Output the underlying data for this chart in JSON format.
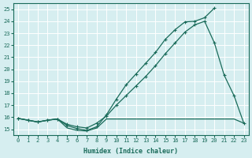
{
  "xlabel": "Humidex (Indice chaleur)",
  "ylabel": "",
  "bg_color": "#d6eef0",
  "grid_color": "#b8dde0",
  "line_color": "#1a6b5a",
  "xlim": [
    -0.5,
    23.5
  ],
  "ylim": [
    14.5,
    25.5
  ],
  "xticks": [
    0,
    1,
    2,
    3,
    4,
    5,
    6,
    7,
    8,
    9,
    10,
    11,
    12,
    13,
    14,
    15,
    16,
    17,
    18,
    19,
    20,
    21,
    22,
    23
  ],
  "yticks": [
    15,
    16,
    17,
    18,
    19,
    20,
    21,
    22,
    23,
    24,
    25
  ],
  "line_flat_x": [
    0,
    1,
    2,
    3,
    4,
    5,
    6,
    7,
    8,
    9,
    10,
    11,
    12,
    13,
    14,
    15,
    16,
    17,
    18,
    19,
    20,
    21,
    22,
    23
  ],
  "line_flat_y": [
    15.9,
    15.75,
    15.6,
    15.75,
    15.85,
    15.1,
    14.9,
    14.85,
    15.1,
    15.85,
    15.85,
    15.85,
    15.85,
    15.85,
    15.85,
    15.85,
    15.85,
    15.85,
    15.85,
    15.85,
    15.85,
    15.85,
    15.85,
    15.5
  ],
  "line_mid_x": [
    0,
    1,
    2,
    3,
    4,
    5,
    6,
    7,
    8,
    9,
    10,
    11,
    12,
    13,
    14,
    15,
    16,
    17,
    18,
    19,
    20,
    21,
    22,
    23
  ],
  "line_mid_y": [
    15.9,
    15.75,
    15.6,
    15.75,
    15.85,
    15.4,
    15.2,
    15.1,
    15.5,
    16.1,
    17.0,
    17.8,
    18.6,
    19.4,
    20.3,
    21.3,
    22.2,
    23.1,
    23.7,
    24.0,
    22.2,
    19.5,
    17.8,
    15.5
  ],
  "line_top_x": [
    0,
    1,
    2,
    3,
    4,
    5,
    6,
    7,
    8,
    9,
    10,
    11,
    12,
    13,
    14,
    15,
    16,
    17,
    18,
    19,
    20
  ],
  "line_top_y": [
    15.9,
    15.75,
    15.6,
    15.75,
    15.85,
    15.3,
    15.05,
    14.9,
    15.2,
    16.2,
    17.5,
    18.7,
    19.6,
    20.5,
    21.4,
    22.5,
    23.3,
    23.95,
    24.0,
    24.3,
    25.1
  ]
}
